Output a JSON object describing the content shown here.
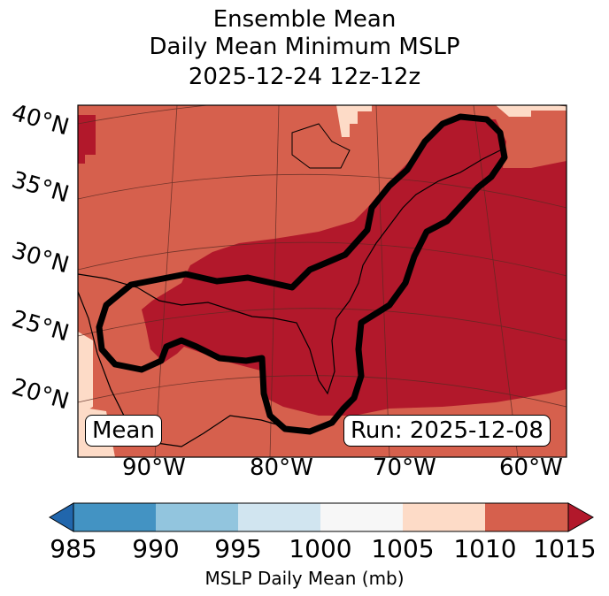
{
  "title": {
    "line1": "Ensemble Mean",
    "line2": "Daily Mean Minimum MSLP",
    "line3": "2025-12-24 12z-12z"
  },
  "map": {
    "lat_labels": [
      "40°N",
      "35°N",
      "30°N",
      "25°N",
      "20°N"
    ],
    "lon_labels": [
      "90°W",
      "80°W",
      "70°W",
      "60°W"
    ],
    "mean_label": "Mean",
    "run_label": "Run: 2025-12-08",
    "colors": {
      "c1010_1015": "#d6604d",
      "c1015_plus": "#b2182b",
      "c1005_1010": "#fddbc7",
      "contour": "#000000",
      "coastline": "#000000",
      "gridline": "#5a2a22"
    }
  },
  "colorbar": {
    "ticks": [
      "985",
      "990",
      "995",
      "1000",
      "1005",
      "1010",
      "1015"
    ],
    "label": "MSLP Daily Mean (mb)",
    "colors": [
      "#2166ac",
      "#4393c3",
      "#92c5de",
      "#d1e5f0",
      "#f7f7f7",
      "#fddbc7",
      "#d6604d",
      "#b2182b"
    ]
  }
}
